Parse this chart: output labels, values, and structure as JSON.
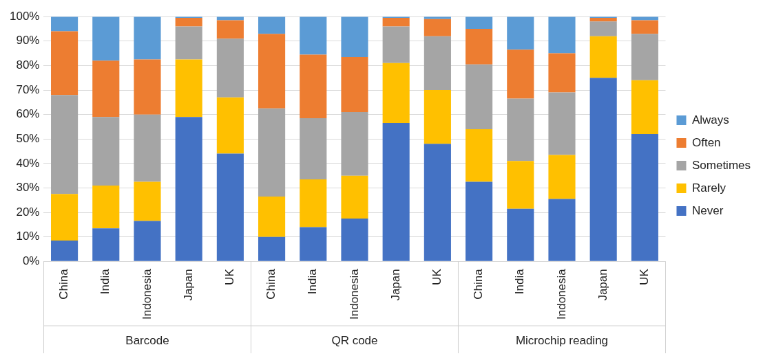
{
  "chart_data": {
    "type": "bar",
    "stacked": true,
    "categories": [
      "China",
      "India",
      "Indonesia",
      "Japan",
      "UK",
      "China",
      "India",
      "Indonesia",
      "Japan",
      "UK",
      "China",
      "India",
      "Indonesia",
      "Japan",
      "UK"
    ],
    "series": [
      {
        "name": "Never",
        "color": "#4472c4",
        "values": [
          8.5,
          13.5,
          16.5,
          59,
          44,
          10,
          14,
          17.5,
          56.5,
          48,
          32.5,
          21.5,
          25.5,
          75,
          52
        ]
      },
      {
        "name": "Rarely",
        "color": "#ffc000",
        "values": [
          19,
          17.5,
          16,
          23.5,
          23,
          16.5,
          19.5,
          17.5,
          24.5,
          22,
          21.5,
          19.5,
          18,
          17,
          22
        ]
      },
      {
        "name": "Sometimes",
        "color": "#a5a5a5",
        "values": [
          40.5,
          28,
          27.5,
          13.5,
          24,
          36,
          25,
          26,
          15,
          22,
          26.5,
          25.5,
          25.5,
          6,
          19
        ]
      },
      {
        "name": "Often",
        "color": "#ed7d31",
        "values": [
          26,
          23,
          22.5,
          3.5,
          7.5,
          30.5,
          26,
          22.5,
          3.5,
          7,
          14.5,
          20,
          16,
          1.5,
          5.5
        ]
      },
      {
        "name": "Always",
        "color": "#5b9bd5",
        "values": [
          6,
          18,
          17.5,
          0.5,
          1.5,
          7,
          15.5,
          16.5,
          0.5,
          1,
          5,
          13.5,
          15,
          0.5,
          1.5
        ]
      }
    ],
    "ylim": [
      0,
      100
    ],
    "yticks": [
      {
        "value": 0,
        "label": "0%"
      },
      {
        "value": 10,
        "label": "10%"
      },
      {
        "value": 20,
        "label": "20%"
      },
      {
        "value": 30,
        "label": "30%"
      },
      {
        "value": 40,
        "label": "40%"
      },
      {
        "value": 50,
        "label": "50%"
      },
      {
        "value": 60,
        "label": "60%"
      },
      {
        "value": 70,
        "label": "70%"
      },
      {
        "value": 80,
        "label": "80%"
      },
      {
        "value": 90,
        "label": "90%"
      },
      {
        "value": 100,
        "label": "100%"
      }
    ],
    "annotations": [
      "Barcode",
      "QR code",
      "Microchip reading"
    ],
    "grid": "y",
    "legend": "right"
  }
}
